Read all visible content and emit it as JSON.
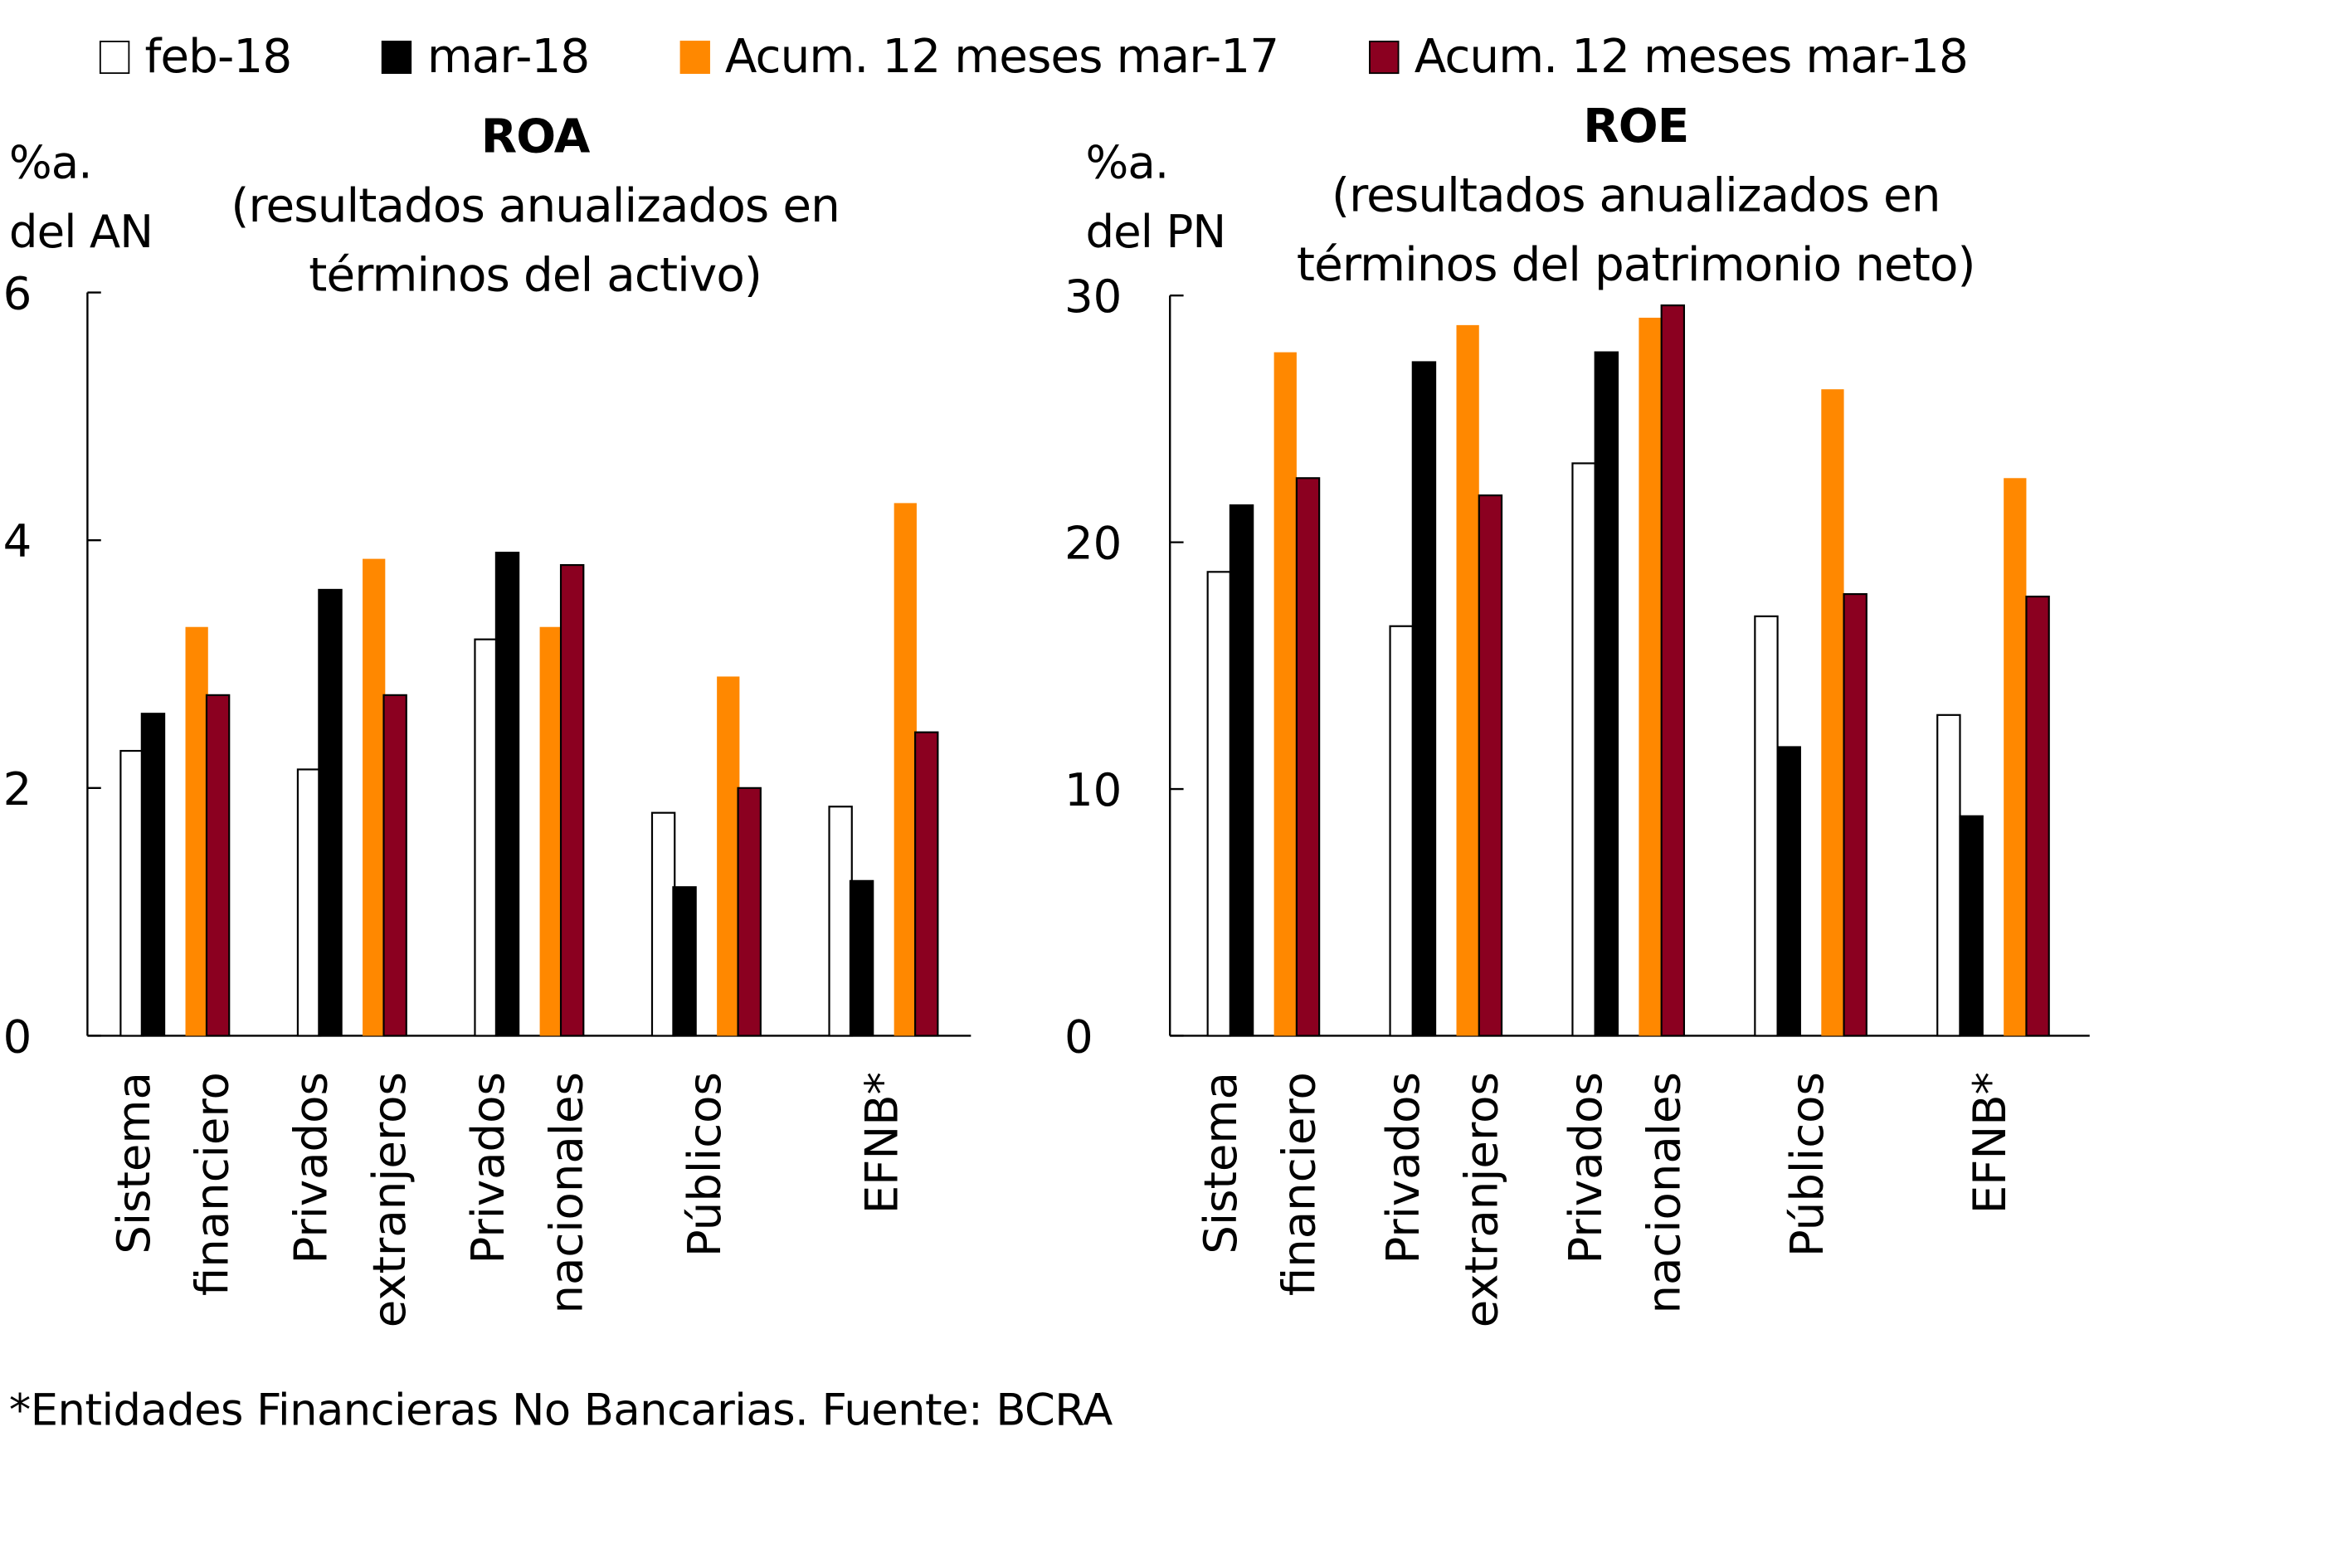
{
  "legend": [
    {
      "label": "feb-18",
      "color": "#ffffff",
      "border": "#000000"
    },
    {
      "label": "mar-18",
      "color": "#000000",
      "border": "#000000"
    },
    {
      "label": "Acum. 12 meses mar-17",
      "color": "#ff8800",
      "border": "#ff8800"
    },
    {
      "label": "Acum. 12 meses mar-18",
      "color": "#8b0020",
      "border": "#000000"
    }
  ],
  "footnote": "*Entidades Financieras No Bancarias. Fuente: BCRA",
  "chart_data": [
    {
      "type": "bar",
      "title": "ROA",
      "subtitle_line1": "(resultados anualizados en",
      "subtitle_line2": "términos del activo)",
      "ylabel_line1": "%a.",
      "ylabel_line2": "del AN",
      "ylim": [
        0,
        6
      ],
      "yticks": [
        0,
        2,
        4,
        6
      ],
      "grid": false,
      "legend_position": "top",
      "categories": [
        [
          "Sistema",
          "financiero"
        ],
        [
          "Privados",
          "extranjeros"
        ],
        [
          "Privados",
          "nacionales"
        ],
        [
          "Públicos"
        ],
        [
          "EFNB*"
        ]
      ],
      "series": [
        {
          "name": "feb-18",
          "values": [
            2.3,
            2.15,
            3.2,
            1.8,
            1.85
          ]
        },
        {
          "name": "mar-18",
          "values": [
            2.6,
            3.6,
            3.9,
            1.2,
            1.25
          ]
        },
        {
          "name": "Acum. 12 meses mar-17",
          "values": [
            3.3,
            3.85,
            3.3,
            2.9,
            4.3
          ]
        },
        {
          "name": "Acum. 12 meses mar-18",
          "values": [
            2.75,
            2.75,
            3.8,
            2.0,
            2.45
          ]
        }
      ]
    },
    {
      "type": "bar",
      "title": "ROE",
      "subtitle_line1": "(resultados anualizados en",
      "subtitle_line2": "términos del patrimonio neto)",
      "ylabel_line1": "%a.",
      "ylabel_line2": "del PN",
      "ylim": [
        0,
        30
      ],
      "yticks": [
        0,
        10,
        20,
        30
      ],
      "grid": false,
      "legend_position": "top",
      "categories": [
        [
          "Sistema",
          "financiero"
        ],
        [
          "Privados",
          "extranjeros"
        ],
        [
          "Privados",
          "nacionales"
        ],
        [
          "Públicos"
        ],
        [
          "EFNB*"
        ]
      ],
      "series": [
        {
          "name": "feb-18",
          "values": [
            18.8,
            16.6,
            23.2,
            17.0,
            13.0
          ]
        },
        {
          "name": "mar-18",
          "values": [
            21.5,
            27.3,
            27.7,
            11.7,
            8.9
          ]
        },
        {
          "name": "Acum. 12 meses mar-17",
          "values": [
            27.7,
            28.8,
            29.1,
            26.2,
            22.6
          ]
        },
        {
          "name": "Acum. 12 meses mar-18",
          "values": [
            22.6,
            21.9,
            29.6,
            17.9,
            17.8
          ]
        }
      ]
    }
  ]
}
